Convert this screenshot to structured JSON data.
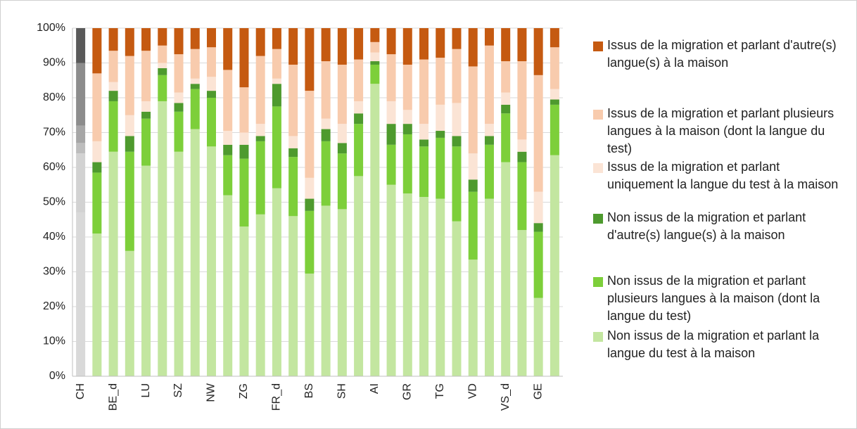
{
  "chart_data": {
    "type": "stacked_bar",
    "categories": [
      "CH",
      null,
      "BE_d",
      null,
      "LU",
      null,
      "SZ",
      null,
      "NW",
      null,
      "ZG",
      null,
      "FR_d",
      null,
      "BS",
      null,
      "SH",
      null,
      "AI",
      null,
      "GR",
      null,
      "TG",
      null,
      "VD",
      null,
      "VS_d",
      null,
      "GE",
      null
    ],
    "series": [
      {
        "name": "Non issus de la migration et parlant la langue du test à la maison",
        "color": "#c3e6a0",
        "reference_color": "#d9d9d9",
        "values": [
          47,
          41,
          64.5,
          36,
          60.5,
          79,
          64.5,
          71,
          66,
          52,
          43,
          46.5,
          54,
          46,
          29.5,
          49,
          48,
          57.5,
          84,
          55,
          52.5,
          51.5,
          51,
          44.5,
          33.5,
          51,
          61.5,
          42,
          22.5,
          63.5
        ]
      },
      {
        "name": "Non issus de la migration et parlant plusieurs langues à la maison (dont la langue du test)",
        "color": "#7dcf3a",
        "reference_color": "#d2d2d2",
        "values": [
          17,
          17.5,
          14.5,
          28.5,
          13.5,
          7.5,
          11.5,
          11.5,
          14,
          11.5,
          19.5,
          21,
          23.5,
          17,
          18,
          18.5,
          16,
          15,
          5.5,
          11.5,
          17,
          14.5,
          17.5,
          21.5,
          19.5,
          15.5,
          14,
          19.5,
          19,
          14.5
        ]
      },
      {
        "name": "Non issus de la migration et parlant d'autre(s) langue(s) à la maison",
        "color": "#4e9a2e",
        "reference_color": "#bdbdbd",
        "values": [
          3,
          3,
          3,
          4.5,
          2,
          2,
          2.5,
          1.5,
          2,
          3,
          4,
          1.5,
          6.5,
          2.5,
          3.5,
          3.5,
          3,
          3,
          1,
          6,
          3,
          2,
          2,
          3,
          3.5,
          2.5,
          2.5,
          3,
          2.5,
          1.5
        ]
      },
      {
        "name": "Issus de la migration et parlant uniquement la langue du test à la maison",
        "color": "#fbe4d5",
        "reference_color": "#a6a6a6",
        "values": [
          5,
          6,
          2.5,
          6,
          3,
          1.5,
          3,
          1.5,
          4,
          4,
          3.5,
          3.5,
          1.5,
          3.5,
          6,
          3,
          5.5,
          3.5,
          2.5,
          6.5,
          4,
          4.5,
          7.5,
          9.5,
          7.5,
          3.5,
          3.5,
          3.5,
          9,
          3
        ]
      },
      {
        "name": "Issus de la migration et parlant plusieurs langues à la maison (dont la langue du test)",
        "color": "#f8cbad",
        "reference_color": "#8c8c8c",
        "values": [
          18,
          19.5,
          9,
          17,
          14.5,
          5,
          11,
          8.5,
          8.5,
          17.5,
          13,
          19.5,
          8.5,
          20.5,
          25,
          16.5,
          17,
          12,
          3,
          13.5,
          13,
          18.5,
          13.5,
          15.5,
          25,
          22.5,
          9,
          22.5,
          33.5,
          12
        ]
      },
      {
        "name": "Issus de la migration et parlant d'autre(s) langue(s) à la maison",
        "color": "#c55a11",
        "reference_color": "#595959",
        "values": [
          10,
          13,
          6.5,
          8,
          6.5,
          5,
          7.5,
          6,
          5.5,
          12,
          17,
          8,
          6,
          10.5,
          18,
          9.5,
          10.5,
          9,
          4,
          7.5,
          10.5,
          9,
          8.5,
          6,
          11,
          5,
          9.5,
          9.5,
          13.5,
          5.5
        ]
      }
    ],
    "ylim": [
      0,
      100
    ],
    "yticks": [
      {
        "value": 0,
        "label": "0%"
      },
      {
        "value": 10,
        "label": "10%"
      },
      {
        "value": 20,
        "label": "20%"
      },
      {
        "value": 30,
        "label": "30%"
      },
      {
        "value": 40,
        "label": "40%"
      },
      {
        "value": 50,
        "label": "50%"
      },
      {
        "value": 60,
        "label": "60%"
      },
      {
        "value": 70,
        "label": "70%"
      },
      {
        "value": 80,
        "label": "80%"
      },
      {
        "value": 90,
        "label": "90%"
      },
      {
        "value": 100,
        "label": "100%"
      }
    ],
    "grid": true,
    "legend": "right"
  }
}
